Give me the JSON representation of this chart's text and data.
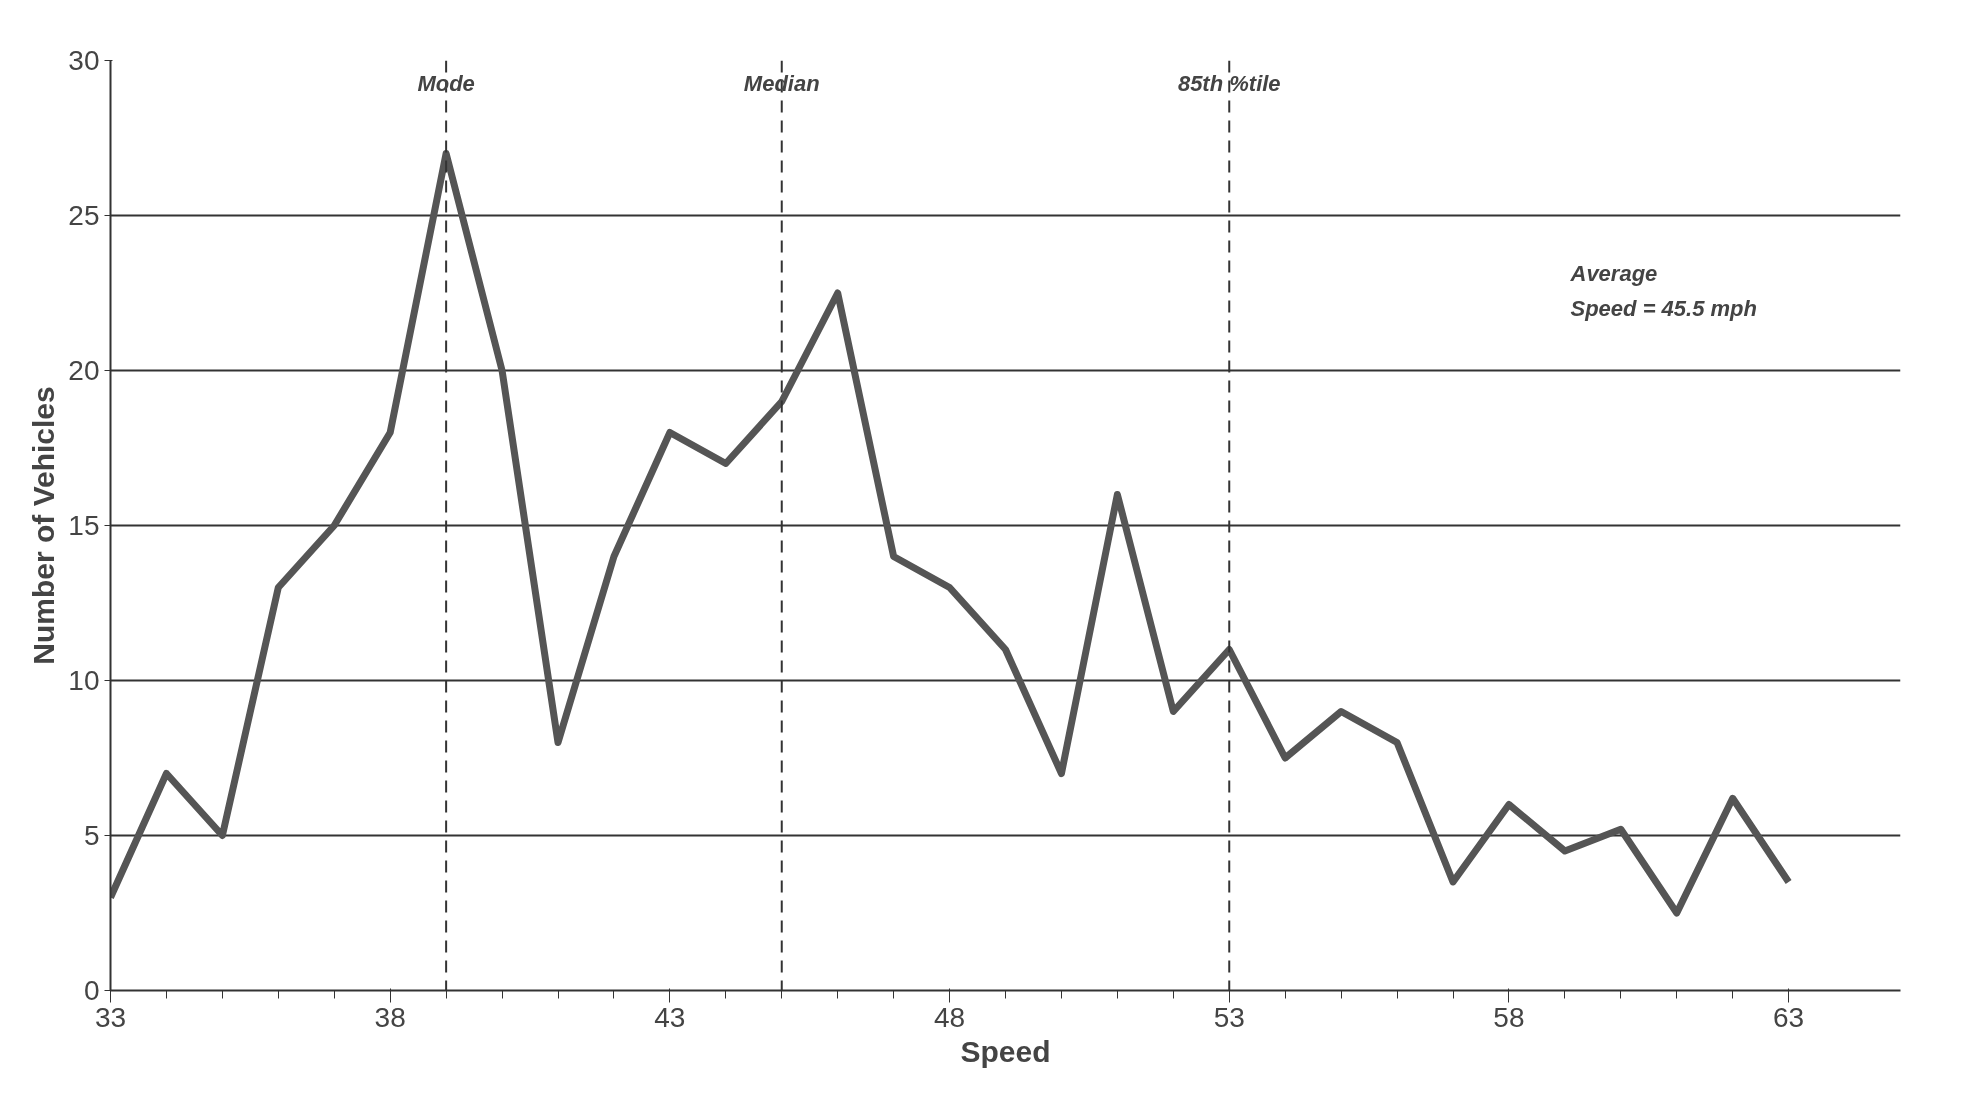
{
  "chart_data": {
    "type": "line",
    "xlabel": "Speed",
    "ylabel": "Number of Vehicles",
    "x": [
      33,
      34,
      35,
      36,
      37,
      38,
      39,
      40,
      41,
      42,
      43,
      44,
      45,
      46,
      47,
      48,
      49,
      50,
      51,
      52,
      53,
      54,
      55,
      56,
      57,
      58,
      59,
      60,
      61,
      62,
      63
    ],
    "series": [
      {
        "color": "#555555",
        "values": [
          3,
          7,
          5,
          13,
          15,
          18,
          27,
          20,
          8,
          14,
          18,
          17,
          19,
          22.5,
          14,
          13,
          11,
          7,
          16,
          9,
          11,
          7.5,
          9,
          8,
          3.5,
          6,
          4.5,
          5.2,
          2.5,
          6.2,
          3.5
        ]
      }
    ],
    "xlim": [
      33,
      65
    ],
    "ylim": [
      0,
      30
    ],
    "xticks": [
      33,
      38,
      43,
      48,
      53,
      58,
      63
    ],
    "yticks": [
      0,
      5,
      10,
      15,
      20,
      25,
      30
    ],
    "grid": "y",
    "marker": "none",
    "line_style": "solid",
    "ref_lines": [
      {
        "axis": "x",
        "value": 39,
        "label": "Mode",
        "line_style": "dashed",
        "color": "#333333"
      },
      {
        "axis": "x",
        "value": 45,
        "label": "Median",
        "line_style": "dashed",
        "color": "#333333"
      },
      {
        "axis": "x",
        "value": 53,
        "label": "85th %tile",
        "line_style": "dashed",
        "color": "#333333"
      }
    ],
    "annotations": [
      "Average\nSpeed = 45.5 mph"
    ]
  }
}
